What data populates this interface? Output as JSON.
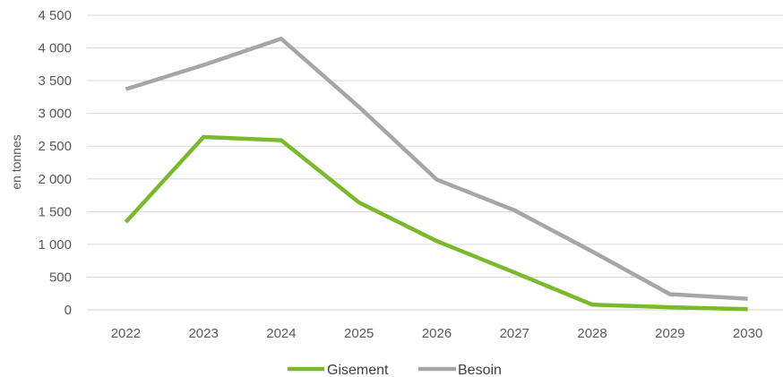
{
  "chart_data": {
    "type": "line",
    "categories": [
      "2022",
      "2023",
      "2024",
      "2025",
      "2026",
      "2027",
      "2028",
      "2029",
      "2030"
    ],
    "ylabel": "en tonnes",
    "ylim": [
      0,
      4500
    ],
    "yticks": [
      0,
      500,
      1000,
      1500,
      2000,
      2500,
      3000,
      3500,
      4000,
      4500
    ],
    "ytick_labels": [
      "0",
      "500",
      "1 000",
      "1 500",
      "2 000",
      "2 500",
      "3 000",
      "3 500",
      "4 000",
      "4 500"
    ],
    "grid": true,
    "legend_position": "bottom",
    "series": [
      {
        "name": "Gisement",
        "color": "#7ab929",
        "values": [
          1340,
          2640,
          2590,
          1640,
          1050,
          570,
          80,
          40,
          10
        ]
      },
      {
        "name": "Besoin",
        "color": "#a6a6a6",
        "values": [
          3370,
          3740,
          4140,
          3100,
          1990,
          1520,
          890,
          240,
          170
        ]
      }
    ]
  }
}
